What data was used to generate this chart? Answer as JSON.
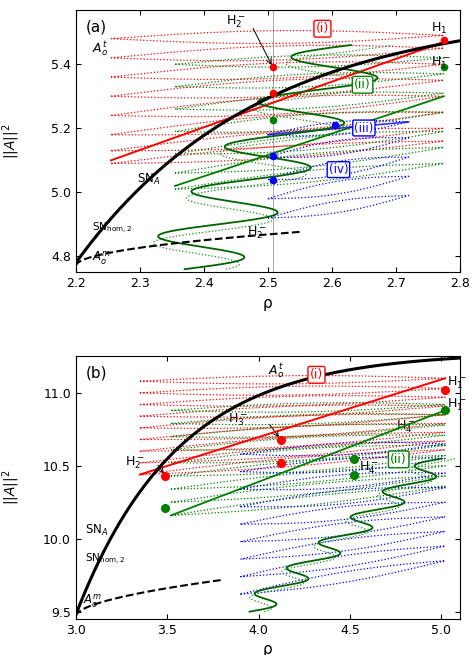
{
  "panel_a": {
    "xlim": [
      2.2,
      2.8
    ],
    "ylim": [
      4.75,
      5.57
    ],
    "xlabel": "ρ",
    "ylabel": "||A||^2",
    "xticks": [
      2.2,
      2.3,
      2.4,
      2.5,
      2.6,
      2.7,
      2.8
    ],
    "yticks": [
      4.8,
      5.0,
      5.2,
      5.4
    ],
    "label": "(a)",
    "vline_x": 2.508
  },
  "panel_b": {
    "xlim": [
      3.0,
      5.1
    ],
    "ylim": [
      9.45,
      11.25
    ],
    "xlabel": "ρ",
    "ylabel": "||A||^2",
    "xticks": [
      3.0,
      3.5,
      4.0,
      4.5,
      5.0
    ],
    "yticks": [
      9.5,
      10.0,
      10.5,
      11.0
    ],
    "label": "(b)"
  }
}
